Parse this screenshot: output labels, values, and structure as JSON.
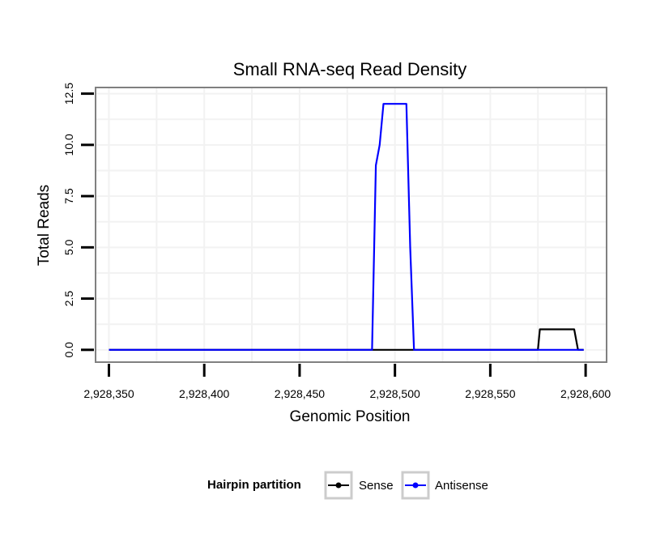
{
  "chart_data": {
    "type": "line",
    "title": "Small RNA-seq Read Density",
    "xlabel": "Genomic Position",
    "ylabel": "Total Reads",
    "xlim": [
      2928343,
      2928611
    ],
    "ylim": [
      -0.6,
      12.8
    ],
    "x_ticks": [
      2928350,
      2928400,
      2928450,
      2928500,
      2928550,
      2928600
    ],
    "x_tick_labels": [
      "2,928,350",
      "2,928,400",
      "2,928,450",
      "2,928,500",
      "2,928,550",
      "2,928,600"
    ],
    "y_ticks": [
      0,
      2.5,
      5,
      7.5,
      10,
      12.5
    ],
    "y_tick_labels": [
      "0.0",
      "2.5",
      "5.0",
      "7.5",
      "10.0",
      "12.5"
    ],
    "grid": true,
    "legend": {
      "title": "Hairpin partition",
      "position": "bottom",
      "entries": [
        "Sense",
        "Antisense"
      ]
    },
    "series": [
      {
        "name": "Sense",
        "color": "#000000",
        "x": [
          2928350,
          2928575,
          2928576,
          2928594,
          2928596,
          2928599
        ],
        "values": [
          0,
          0,
          1,
          1,
          0,
          0
        ]
      },
      {
        "name": "Antisense",
        "color": "#0000ff",
        "x": [
          2928350,
          2928488,
          2928490,
          2928492,
          2928494,
          2928506,
          2928508,
          2928510,
          2928599
        ],
        "values": [
          0,
          0,
          9,
          10,
          12,
          12,
          5,
          0,
          0
        ]
      }
    ]
  }
}
